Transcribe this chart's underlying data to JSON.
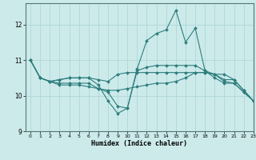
{
  "xlabel": "Humidex (Indice chaleur)",
  "xlim": [
    -0.5,
    23
  ],
  "ylim": [
    9,
    12.6
  ],
  "yticks": [
    9,
    10,
    11,
    12
  ],
  "xticks": [
    0,
    1,
    2,
    3,
    4,
    5,
    6,
    7,
    8,
    9,
    10,
    11,
    12,
    13,
    14,
    15,
    16,
    17,
    18,
    19,
    20,
    21,
    22,
    23
  ],
  "bg_color": "#cceaea",
  "line_color": "#2e7d7d",
  "grid_color": "#b0d8d8",
  "lines": [
    {
      "x": [
        0,
        1,
        2,
        3,
        4,
        5,
        6,
        7,
        8,
        9,
        10,
        11,
        12,
        13,
        14,
        15,
        16,
        17,
        18,
        19,
        20,
        21,
        22,
        23
      ],
      "y": [
        11.0,
        10.5,
        10.4,
        10.45,
        10.5,
        10.5,
        10.5,
        10.3,
        9.85,
        9.5,
        9.65,
        10.75,
        11.55,
        11.75,
        11.85,
        12.4,
        11.5,
        11.9,
        10.7,
        10.6,
        10.6,
        10.45,
        10.15,
        9.85
      ]
    },
    {
      "x": [
        0,
        1,
        2,
        3,
        4,
        5,
        6,
        7,
        8,
        9,
        10,
        11,
        12,
        13,
        14,
        15,
        16,
        17,
        18,
        19,
        20,
        21,
        22,
        23
      ],
      "y": [
        11.0,
        10.5,
        10.4,
        10.45,
        10.5,
        10.5,
        10.5,
        10.45,
        10.4,
        10.6,
        10.65,
        10.65,
        10.65,
        10.65,
        10.65,
        10.65,
        10.65,
        10.65,
        10.65,
        10.6,
        10.45,
        10.45,
        10.15,
        9.85
      ]
    },
    {
      "x": [
        0,
        1,
        2,
        3,
        4,
        5,
        6,
        7,
        8,
        9,
        10,
        11,
        12,
        13,
        14,
        15,
        16,
        17,
        18,
        19,
        20,
        21,
        22,
        23
      ],
      "y": [
        11.0,
        10.5,
        10.4,
        10.3,
        10.3,
        10.3,
        10.25,
        10.2,
        10.15,
        10.15,
        10.2,
        10.25,
        10.3,
        10.35,
        10.35,
        10.4,
        10.5,
        10.65,
        10.65,
        10.6,
        10.4,
        10.35,
        10.1,
        9.85
      ]
    },
    {
      "x": [
        0,
        1,
        2,
        3,
        4,
        5,
        6,
        7,
        8,
        9,
        10,
        11,
        12,
        13,
        14,
        15,
        16,
        17,
        18,
        19,
        20,
        21,
        22,
        23
      ],
      "y": [
        11.0,
        10.5,
        10.4,
        10.35,
        10.35,
        10.35,
        10.35,
        10.2,
        10.1,
        9.7,
        9.65,
        10.7,
        10.8,
        10.85,
        10.85,
        10.85,
        10.85,
        10.85,
        10.7,
        10.5,
        10.35,
        10.35,
        10.1,
        9.85
      ]
    }
  ],
  "markersize": 2.0,
  "linewidth": 0.8
}
